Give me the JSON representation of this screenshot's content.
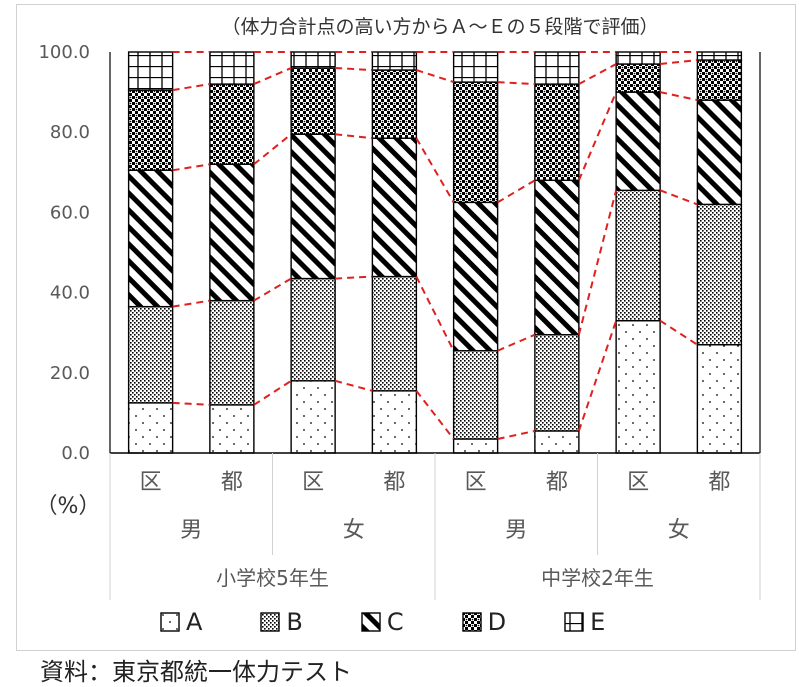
{
  "chart_data": {
    "type": "bar",
    "stacked": true,
    "title": "（体力合計点の高い方からＡ～Ｅの５段階で評価）",
    "ylabel": "（%）",
    "ylim": [
      0,
      100
    ],
    "y_ticks": [
      "0.0",
      "20.0",
      "40.0",
      "60.0",
      "80.0",
      "100.0"
    ],
    "categories": [
      "区",
      "都",
      "区",
      "都",
      "区",
      "都",
      "区",
      "都"
    ],
    "group_level2": [
      {
        "label": "男",
        "span": 2
      },
      {
        "label": "女",
        "span": 2
      },
      {
        "label": "男",
        "span": 2
      },
      {
        "label": "女",
        "span": 2
      }
    ],
    "group_level3": [
      {
        "label": "小学校5年生",
        "span": 4
      },
      {
        "label": "中学校2年生",
        "span": 4
      }
    ],
    "series": [
      {
        "name": "A",
        "values": [
          12.5,
          12.0,
          18.0,
          15.5,
          3.5,
          5.5,
          33.0,
          27.0
        ]
      },
      {
        "name": "B",
        "values": [
          24.0,
          26.0,
          25.5,
          28.5,
          22.0,
          24.0,
          32.5,
          35.0
        ]
      },
      {
        "name": "C",
        "values": [
          34.0,
          34.0,
          36.0,
          34.5,
          37.0,
          38.5,
          24.5,
          26.0
        ]
      },
      {
        "name": "D",
        "values": [
          20.0,
          20.0,
          16.5,
          17.0,
          30.0,
          24.0,
          7.0,
          10.0
        ]
      },
      {
        "name": "E",
        "values": [
          9.5,
          8.0,
          4.0,
          4.5,
          7.5,
          8.0,
          3.0,
          2.0
        ]
      }
    ],
    "connector_lines": {
      "style": "dashed",
      "color": "#e02020"
    },
    "legend_position": "bottom"
  },
  "source_note": "資料：東京都統一体力テスト",
  "colors": {
    "connector": "#e02020",
    "bar_border": "#000000",
    "axis_text": "#595959"
  }
}
